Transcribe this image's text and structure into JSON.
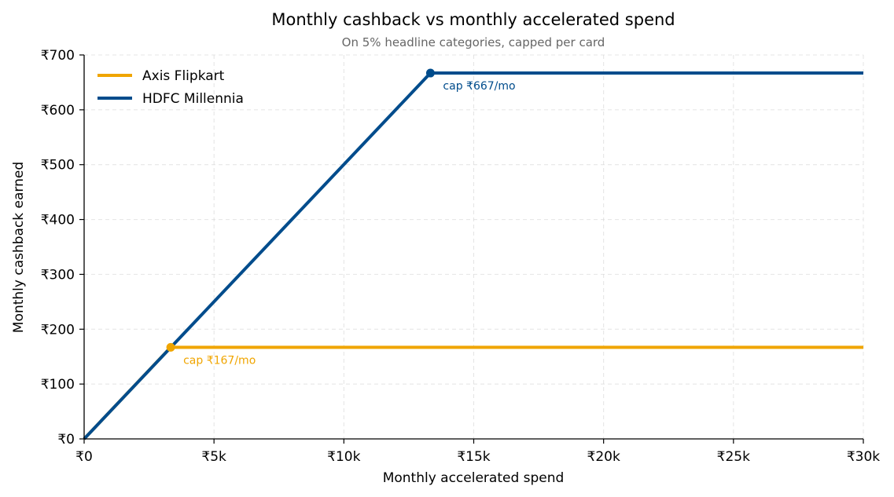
{
  "chart_data": {
    "type": "line",
    "title": "Monthly cashback vs monthly accelerated spend",
    "subtitle": "On 5% headline categories, capped per card",
    "xlabel": "Monthly accelerated spend",
    "ylabel": "Monthly cashback earned",
    "xlim": [
      0,
      30000
    ],
    "ylim": [
      0,
      700
    ],
    "x_ticks": [
      {
        "value": 0,
        "label": "₹0"
      },
      {
        "value": 5000,
        "label": "₹5k"
      },
      {
        "value": 10000,
        "label": "₹10k"
      },
      {
        "value": 15000,
        "label": "₹15k"
      },
      {
        "value": 20000,
        "label": "₹20k"
      },
      {
        "value": 25000,
        "label": "₹25k"
      },
      {
        "value": 30000,
        "label": "₹30k"
      }
    ],
    "y_ticks": [
      {
        "value": 0,
        "label": "₹0"
      },
      {
        "value": 100,
        "label": "₹100"
      },
      {
        "value": 200,
        "label": "₹200"
      },
      {
        "value": 300,
        "label": "₹300"
      },
      {
        "value": 400,
        "label": "₹400"
      },
      {
        "value": 500,
        "label": "₹500"
      },
      {
        "value": 600,
        "label": "₹600"
      },
      {
        "value": 700,
        "label": "₹700"
      }
    ],
    "grid": true,
    "legend_position": "top-left",
    "series": [
      {
        "name": "Axis Flipkart",
        "color": "#F0A500",
        "x": [
          0,
          3333,
          30000
        ],
        "y": [
          0,
          167,
          167
        ],
        "cap_point": {
          "x": 3333,
          "y": 167,
          "label": "cap ₹167/mo"
        }
      },
      {
        "name": "HDFC Millennia",
        "color": "#004C8C",
        "x": [
          0,
          13333,
          30000
        ],
        "y": [
          0,
          667,
          667
        ],
        "cap_point": {
          "x": 13333,
          "y": 667,
          "label": "cap ₹667/mo"
        }
      }
    ]
  }
}
